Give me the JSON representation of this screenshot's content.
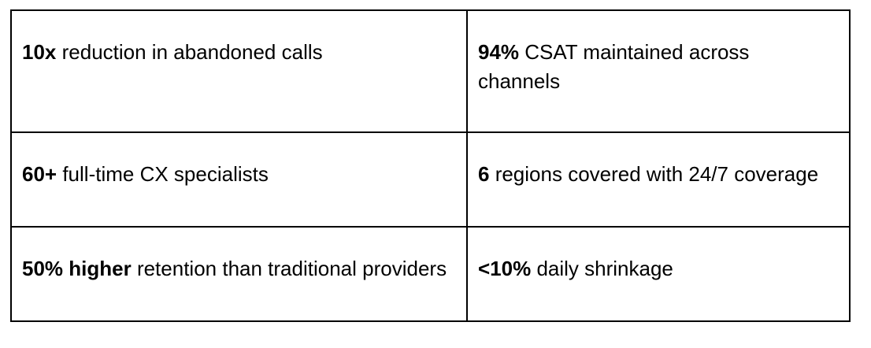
{
  "page": {
    "background_color": "#ffffff",
    "text_color": "#000000",
    "border_color": "#000000"
  },
  "table": {
    "rows": [
      {
        "cells": [
          {
            "lead": "10x",
            "rest": " reduction in abandoned calls"
          },
          {
            "lead": "94%",
            "rest": " CSAT maintained across\nchannels"
          }
        ]
      },
      {
        "cells": [
          {
            "lead": "60+",
            "rest": " full-time CX specialists"
          },
          {
            "lead": "6",
            "rest": " regions covered with 24/7 coverage"
          }
        ]
      },
      {
        "cells": [
          {
            "lead": "50% higher",
            "rest": " retention than traditional providers"
          },
          {
            "lead": "<10%",
            "rest": " daily shrinkage"
          }
        ]
      }
    ]
  }
}
